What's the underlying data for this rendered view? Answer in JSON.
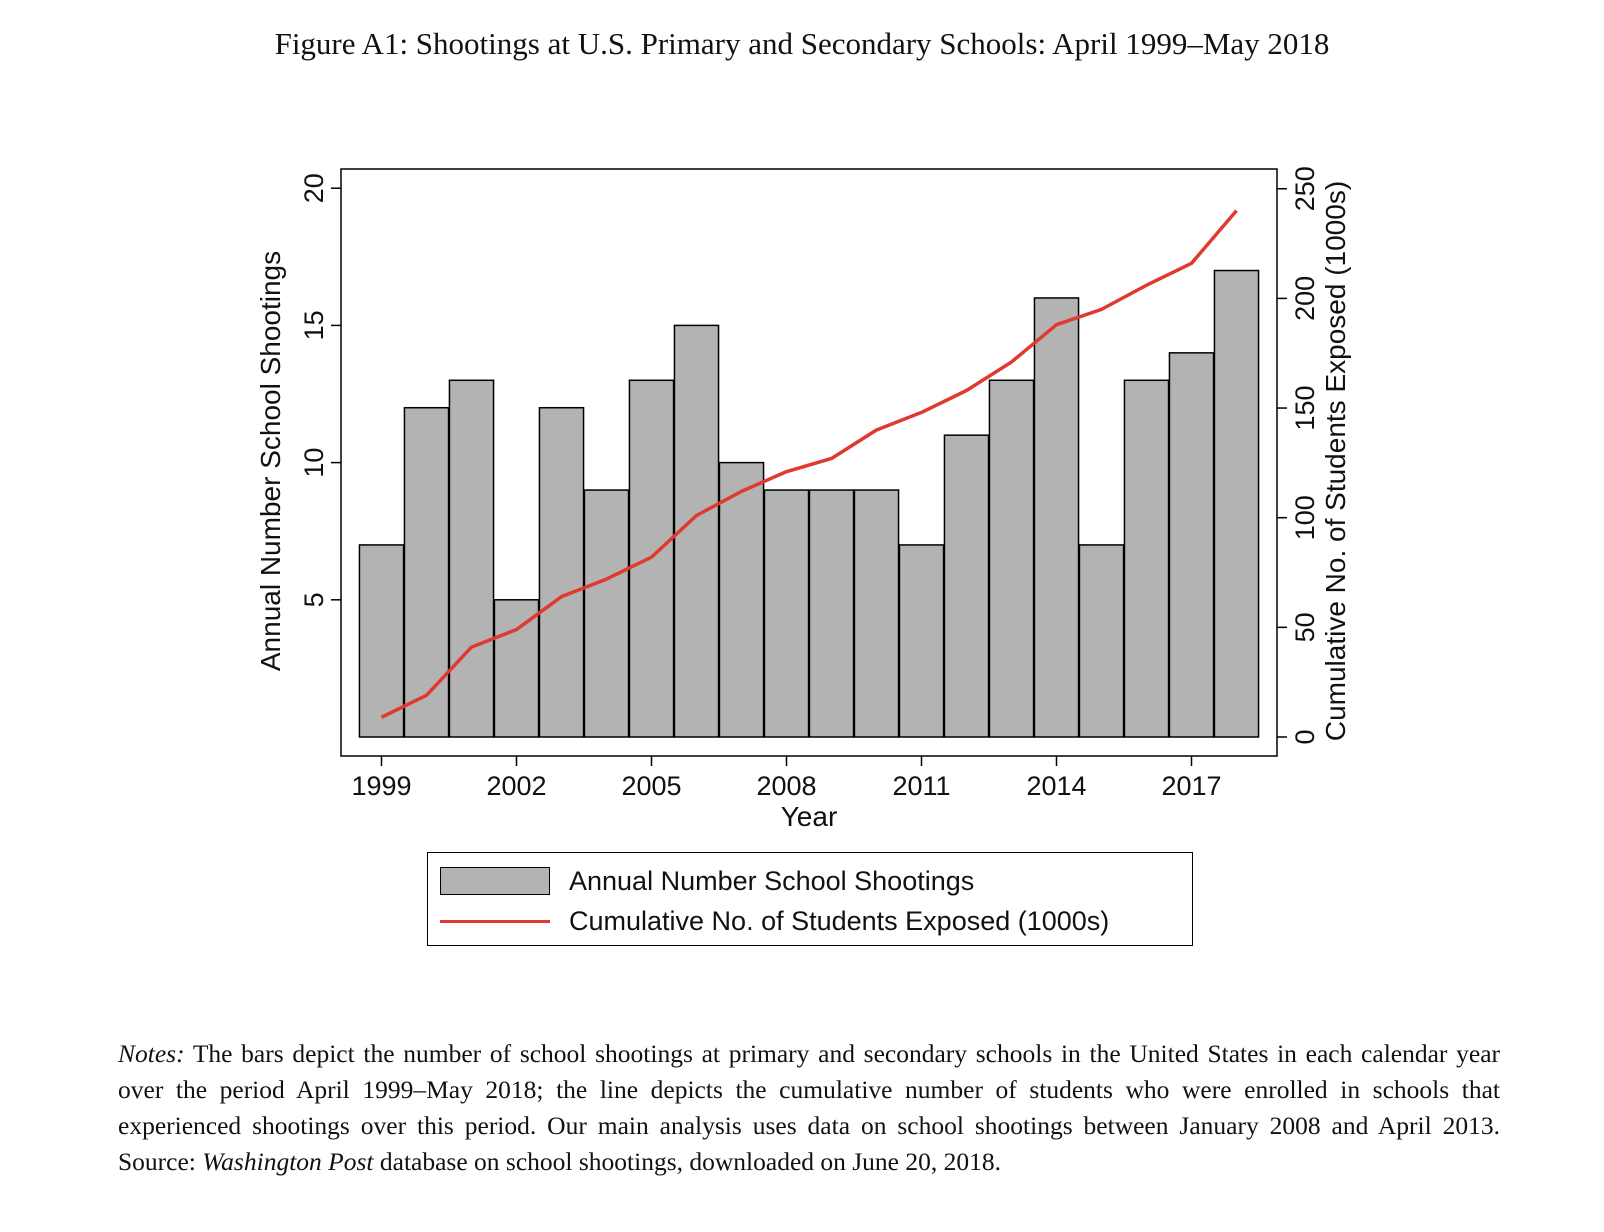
{
  "figure": {
    "title": "Figure A1: Shootings at U.S. Primary and Secondary Schools: April 1999–May 2018"
  },
  "chart_data": {
    "type": "bar",
    "xlabel": "Year",
    "ylabel": "Annual Number School Shootings",
    "y2label": "Cumulative No. of Students Exposed (1000s)",
    "x": [
      1999,
      2000,
      2001,
      2002,
      2003,
      2004,
      2005,
      2006,
      2007,
      2008,
      2009,
      2010,
      2011,
      2012,
      2013,
      2014,
      2015,
      2016,
      2017,
      2018
    ],
    "xticks": [
      "1999",
      "2002",
      "2005",
      "2008",
      "2011",
      "2014",
      "2017"
    ],
    "yticks": [
      "5",
      "10",
      "15",
      "20"
    ],
    "y2ticks": [
      "0",
      "50",
      "100",
      "150",
      "200",
      "250"
    ],
    "ylim": [
      0,
      20.7
    ],
    "y2lim": [
      0,
      259
    ],
    "xlim": [
      1998.1,
      2018.9
    ],
    "legend_position": "bottom",
    "series": [
      {
        "name": "Annual Number School Shootings",
        "type": "bar",
        "axis": "left",
        "color": "#b3b3b3",
        "values": [
          7,
          12,
          13,
          5,
          12,
          9,
          13,
          15,
          10,
          9,
          9,
          9,
          7,
          11,
          13,
          16,
          7,
          13,
          14,
          17
        ]
      },
      {
        "name": "Cumulative No. of Students Exposed (1000s)",
        "type": "line",
        "axis": "right",
        "color": "#e0392f",
        "values": [
          9,
          19,
          41,
          49,
          64,
          72,
          82,
          101,
          112,
          121,
          127,
          140,
          148,
          158,
          171,
          188,
          195,
          206,
          216,
          240
        ]
      }
    ]
  },
  "legend": {
    "items": [
      {
        "label": "Annual Number School Shootings"
      },
      {
        "label": "Cumulative No. of Students Exposed (1000s)"
      }
    ]
  },
  "notes": {
    "lead": "Notes:",
    "part1": " The bars depict the number of school shootings at primary and secondary schools in the United States in each calendar year over the period April 1999–May 2018; the line depicts the cumulative number of students who were enrolled in schools that experienced shootings over this period. Our main analysis uses data on school shootings between January 2008 and April 2013. Source: ",
    "source_italic": "Washington Post",
    "part2": " database on school shootings, downloaded on June 20, 2018."
  }
}
